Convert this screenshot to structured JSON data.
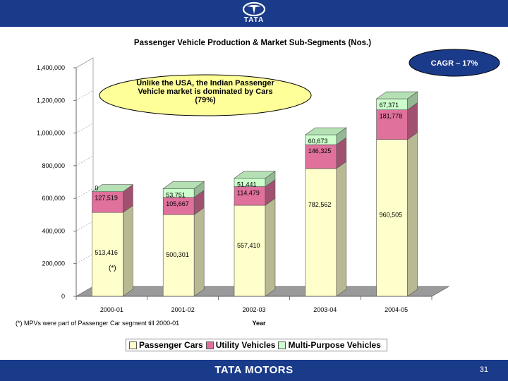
{
  "header": {
    "logo_text": "TATA"
  },
  "footer": {
    "brand": "TATA MOTORS",
    "page_number": "31"
  },
  "chart_data": {
    "type": "bar",
    "stacked": true,
    "title": "Passenger Vehicle Production & Market Sub-Segments (Nos.)",
    "xlabel": "Year",
    "ylabel": "",
    "ylim": [
      0,
      1400000
    ],
    "yticks": [
      "0",
      "200,000",
      "400,000",
      "600,000",
      "800,000",
      "1,000,000",
      "1,200,000",
      "1,400,000"
    ],
    "categories": [
      "2000-01",
      "2001-02",
      "2002-03",
      "2003-04",
      "2004-05"
    ],
    "series": [
      {
        "name": "Passenger Cars",
        "values": [
          513416,
          500301,
          557410,
          782562,
          960505
        ],
        "labels": [
          "513,416",
          "500,301",
          "557,410",
          "782,562",
          "960,505"
        ],
        "color": "#ffffcc"
      },
      {
        "name": "Utility Vehicles",
        "values": [
          127519,
          105667,
          114479,
          146325,
          181778
        ],
        "labels": [
          "127,519",
          "105,667",
          "114,479",
          "146,325",
          "181,778"
        ],
        "color": "#e0709c"
      },
      {
        "name": "Multi-Purpose Vehicles",
        "values": [
          0,
          53751,
          51441,
          60673,
          67371
        ],
        "labels": [
          "0",
          "53,751",
          "51,441",
          "60,673",
          "67,371"
        ],
        "color": "#ccffcc"
      }
    ],
    "annotations": {
      "callout": "Unlike the USA, the Indian Passenger Vehicle market is dominated by Cars (79%)",
      "cagr": "CAGR – 17%",
      "asterisk": "(*)",
      "footnote": "(*) MPVs were part of Passenger Car segment till 2000-01"
    },
    "grid": false,
    "legend_position": "bottom"
  }
}
